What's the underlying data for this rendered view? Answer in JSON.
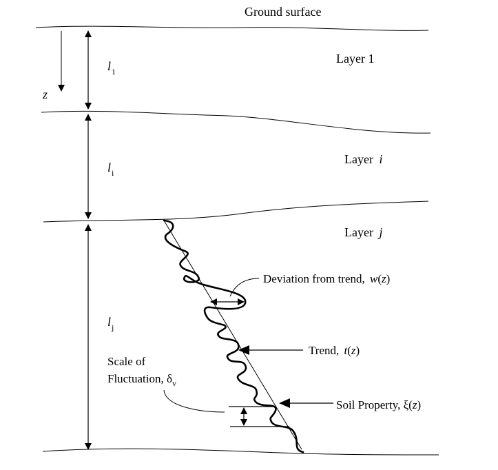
{
  "labels": {
    "ground_surface": "Ground surface",
    "layer_1": "Layer 1",
    "layer_i_word": "Layer",
    "layer_i_var": "i",
    "layer_j_word": "Layer",
    "layer_j_var": "j",
    "z_axis": "z",
    "l1_base": "l",
    "l1_sub": "1",
    "li_base": "l",
    "li_sub": "i",
    "lj_base": "l",
    "lj_sub": "j",
    "deviation_text": "Deviation from trend,",
    "deviation_func": "w",
    "deviation_arg": "z",
    "trend_text": "Trend,",
    "trend_func": "t",
    "trend_arg": "z",
    "scale_line1": "Scale of",
    "scale_line2": "Fluctuation, δ",
    "scale_sub": "v",
    "soil_text": "Soil Property, ξ(",
    "soil_arg": "z",
    "open_paren": "(",
    "close_paren": ")"
  }
}
